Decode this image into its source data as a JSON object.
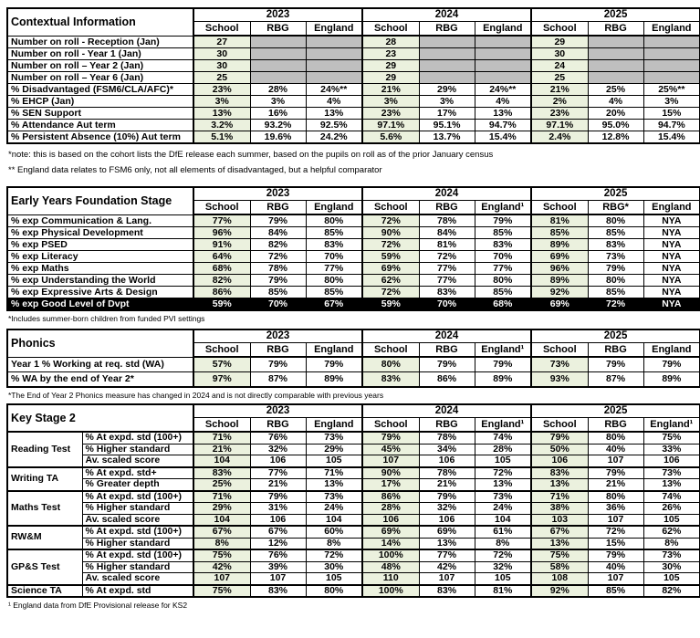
{
  "colors": {
    "school_cell": "#ebf1de",
    "grey_cell": "#bfbfbf",
    "black_row": "#000000"
  },
  "years": [
    "2023",
    "2024",
    "2025"
  ],
  "contextual": {
    "title": "Contextual Information",
    "headers": [
      [
        "School",
        "RBG",
        "England"
      ],
      [
        "School",
        "RBG",
        "England"
      ],
      [
        "School",
        "RBG",
        "England"
      ]
    ],
    "rows": [
      {
        "label": "Number on roll - Reception (Jan)",
        "grey": true,
        "values": [
          [
            "27",
            "",
            ""
          ],
          [
            "28",
            "",
            ""
          ],
          [
            "29",
            "",
            ""
          ]
        ]
      },
      {
        "label": "Number on roll - Year 1 (Jan)",
        "grey": true,
        "values": [
          [
            "30",
            "",
            ""
          ],
          [
            "23",
            "",
            ""
          ],
          [
            "30",
            "",
            ""
          ]
        ]
      },
      {
        "label": "Number on roll – Year 2 (Jan)",
        "grey": true,
        "values": [
          [
            "30",
            "",
            ""
          ],
          [
            "29",
            "",
            ""
          ],
          [
            "24",
            "",
            ""
          ]
        ]
      },
      {
        "label": "Number on roll – Year 6 (Jan)",
        "grey": true,
        "values": [
          [
            "25",
            "",
            ""
          ],
          [
            "29",
            "",
            ""
          ],
          [
            "25",
            "",
            ""
          ]
        ]
      },
      {
        "label": "% Disadvantaged (FSM6/CLA/AFC)*",
        "values": [
          [
            "23%",
            "28%",
            "24%**"
          ],
          [
            "21%",
            "29%",
            "24%**"
          ],
          [
            "21%",
            "25%",
            "25%**"
          ]
        ]
      },
      {
        "label": "% EHCP (Jan)",
        "values": [
          [
            "3%",
            "3%",
            "4%"
          ],
          [
            "3%",
            "3%",
            "4%"
          ],
          [
            "2%",
            "4%",
            "3%"
          ]
        ]
      },
      {
        "label": "% SEN Support",
        "values": [
          [
            "13%",
            "16%",
            "13%"
          ],
          [
            "23%",
            "17%",
            "13%"
          ],
          [
            "23%",
            "20%",
            "15%"
          ]
        ]
      },
      {
        "label": "% Attendance Aut term",
        "values": [
          [
            "3.2%",
            "93.2%",
            "92.5%"
          ],
          [
            "97.1%",
            "95.1%",
            "94.7%"
          ],
          [
            "97.1%",
            "95.0%",
            "94.7%"
          ]
        ]
      },
      {
        "label": "% Persistent Absence (10%) Aut term",
        "values": [
          [
            "5.1%",
            "19.6%",
            "24.2%"
          ],
          [
            "5.6%",
            "13.7%",
            "15.4%"
          ],
          [
            "2.4%",
            "12.8%",
            "15.4%"
          ]
        ]
      }
    ]
  },
  "eyfs": {
    "title": "Early Years Foundation Stage",
    "headers": [
      [
        "School",
        "RBG",
        "England"
      ],
      [
        "School",
        "RBG",
        "England¹"
      ],
      [
        "School",
        "RBG*",
        "England"
      ]
    ],
    "rows": [
      {
        "label": "% exp Communication & Lang.",
        "values": [
          [
            "77%",
            "79%",
            "80%"
          ],
          [
            "72%",
            "78%",
            "79%"
          ],
          [
            "81%",
            "80%",
            "NYA"
          ]
        ]
      },
      {
        "label": "% exp Physical Development",
        "values": [
          [
            "96%",
            "84%",
            "85%"
          ],
          [
            "90%",
            "84%",
            "85%"
          ],
          [
            "85%",
            "85%",
            "NYA"
          ]
        ]
      },
      {
        "label": "% exp PSED",
        "values": [
          [
            "91%",
            "82%",
            "83%"
          ],
          [
            "72%",
            "81%",
            "83%"
          ],
          [
            "89%",
            "83%",
            "NYA"
          ]
        ]
      },
      {
        "label": "% exp Literacy",
        "values": [
          [
            "64%",
            "72%",
            "70%"
          ],
          [
            "59%",
            "72%",
            "70%"
          ],
          [
            "69%",
            "73%",
            "NYA"
          ]
        ]
      },
      {
        "label": "% exp Maths",
        "values": [
          [
            "68%",
            "78%",
            "77%"
          ],
          [
            "69%",
            "77%",
            "77%"
          ],
          [
            "96%",
            "79%",
            "NYA"
          ]
        ]
      },
      {
        "label": "% exp Understanding the World",
        "values": [
          [
            "82%",
            "79%",
            "80%"
          ],
          [
            "62%",
            "77%",
            "80%"
          ],
          [
            "89%",
            "80%",
            "NYA"
          ]
        ]
      },
      {
        "label": "% exp Expressive Arts & Design",
        "values": [
          [
            "86%",
            "85%",
            "85%"
          ],
          [
            "72%",
            "83%",
            "85%"
          ],
          [
            "92%",
            "85%",
            "NYA"
          ]
        ]
      },
      {
        "label": "% exp Good Level of Dvpt",
        "black": true,
        "values": [
          [
            "59%",
            "70%",
            "67%"
          ],
          [
            "59%",
            "70%",
            "68%"
          ],
          [
            "69%",
            "72%",
            "NYA"
          ]
        ]
      }
    ]
  },
  "phonics": {
    "title": "Phonics",
    "headers": [
      [
        "School",
        "RBG",
        "England"
      ],
      [
        "School",
        "RBG",
        "England¹"
      ],
      [
        "School",
        "RBG",
        "England"
      ]
    ],
    "rows": [
      {
        "label": "Year 1 % Working at req. std (WA)",
        "values": [
          [
            "57%",
            "79%",
            "79%"
          ],
          [
            "80%",
            "79%",
            "79%"
          ],
          [
            "73%",
            "79%",
            "79%"
          ]
        ]
      },
      {
        "label": "% WA by the end of Year 2*",
        "values": [
          [
            "97%",
            "87%",
            "89%"
          ],
          [
            "83%",
            "86%",
            "89%"
          ],
          [
            "93%",
            "87%",
            "89%"
          ]
        ]
      }
    ]
  },
  "ks2": {
    "title": "Key Stage 2",
    "headers": [
      [
        "School",
        "RBG",
        "England"
      ],
      [
        "School",
        "RBG",
        "England¹"
      ],
      [
        "School",
        "RBG",
        "England¹"
      ]
    ],
    "groups": [
      {
        "label": "Reading Test",
        "rows": [
          {
            "label": "% At expd. std (100+)",
            "values": [
              [
                "71%",
                "76%",
                "73%"
              ],
              [
                "79%",
                "78%",
                "74%"
              ],
              [
                "79%",
                "80%",
                "75%"
              ]
            ]
          },
          {
            "label": "% Higher standard",
            "values": [
              [
                "21%",
                "32%",
                "29%"
              ],
              [
                "45%",
                "34%",
                "28%"
              ],
              [
                "50%",
                "40%",
                "33%"
              ]
            ]
          },
          {
            "label": "Av. scaled score",
            "values": [
              [
                "104",
                "106",
                "105"
              ],
              [
                "107",
                "106",
                "105"
              ],
              [
                "106",
                "107",
                "106"
              ]
            ]
          }
        ]
      },
      {
        "label": "Writing TA",
        "rows": [
          {
            "label": "% At expd. std+",
            "values": [
              [
                "83%",
                "77%",
                "71%"
              ],
              [
                "90%",
                "78%",
                "72%"
              ],
              [
                "83%",
                "79%",
                "73%"
              ]
            ]
          },
          {
            "label": "% Greater depth",
            "values": [
              [
                "25%",
                "21%",
                "13%"
              ],
              [
                "17%",
                "21%",
                "13%"
              ],
              [
                "13%",
                "21%",
                "13%"
              ]
            ]
          }
        ]
      },
      {
        "label": "Maths Test",
        "rows": [
          {
            "label": "% At expd. std (100+)",
            "values": [
              [
                "71%",
                "79%",
                "73%"
              ],
              [
                "86%",
                "79%",
                "73%"
              ],
              [
                "71%",
                "80%",
                "74%"
              ]
            ]
          },
          {
            "label": "% Higher standard",
            "values": [
              [
                "29%",
                "31%",
                "24%"
              ],
              [
                "28%",
                "32%",
                "24%"
              ],
              [
                "38%",
                "36%",
                "26%"
              ]
            ]
          },
          {
            "label": "Av. scaled score",
            "values": [
              [
                "104",
                "106",
                "104"
              ],
              [
                "106",
                "106",
                "104"
              ],
              [
                "103",
                "107",
                "105"
              ]
            ]
          }
        ]
      },
      {
        "label": "RW&M",
        "rows": [
          {
            "label": "% At expd. std (100+)",
            "values": [
              [
                "67%",
                "67%",
                "60%"
              ],
              [
                "69%",
                "69%",
                "61%"
              ],
              [
                "67%",
                "72%",
                "62%"
              ]
            ]
          },
          {
            "label": "% Higher standard",
            "values": [
              [
                "8%",
                "12%",
                "8%"
              ],
              [
                "14%",
                "13%",
                "8%"
              ],
              [
                "13%",
                "15%",
                "8%"
              ]
            ]
          }
        ]
      },
      {
        "label": "GP&S Test",
        "rows": [
          {
            "label": "% At expd. std (100+)",
            "values": [
              [
                "75%",
                "76%",
                "72%"
              ],
              [
                "100%",
                "77%",
                "72%"
              ],
              [
                "75%",
                "79%",
                "73%"
              ]
            ]
          },
          {
            "label": "% Higher standard",
            "values": [
              [
                "42%",
                "39%",
                "30%"
              ],
              [
                "48%",
                "42%",
                "32%"
              ],
              [
                "58%",
                "40%",
                "30%"
              ]
            ]
          },
          {
            "label": "Av. scaled score",
            "values": [
              [
                "107",
                "107",
                "105"
              ],
              [
                "110",
                "107",
                "105"
              ],
              [
                "108",
                "107",
                "105"
              ]
            ]
          }
        ]
      },
      {
        "label": "Science TA",
        "rows": [
          {
            "label": "% At expd. std",
            "values": [
              [
                "75%",
                "83%",
                "80%"
              ],
              [
                "100%",
                "83%",
                "81%"
              ],
              [
                "92%",
                "85%",
                "82%"
              ]
            ]
          }
        ]
      }
    ]
  },
  "notes": {
    "contextual1": "*note: this is based on the cohort lists the DfE release each summer, based on the pupils on roll as of the prior January census",
    "contextual2": "** England data relates to FSM6 only, not all elements of disadvantaged, but a helpful comparator",
    "eyfs": "*Includes summer-born children from funded PVI settings",
    "phonics": "*The End of Year 2 Phonics measure has changed in 2024 and is not directly comparable with previous years",
    "ks2": "¹ England data from DfE Provisional release for KS2"
  }
}
